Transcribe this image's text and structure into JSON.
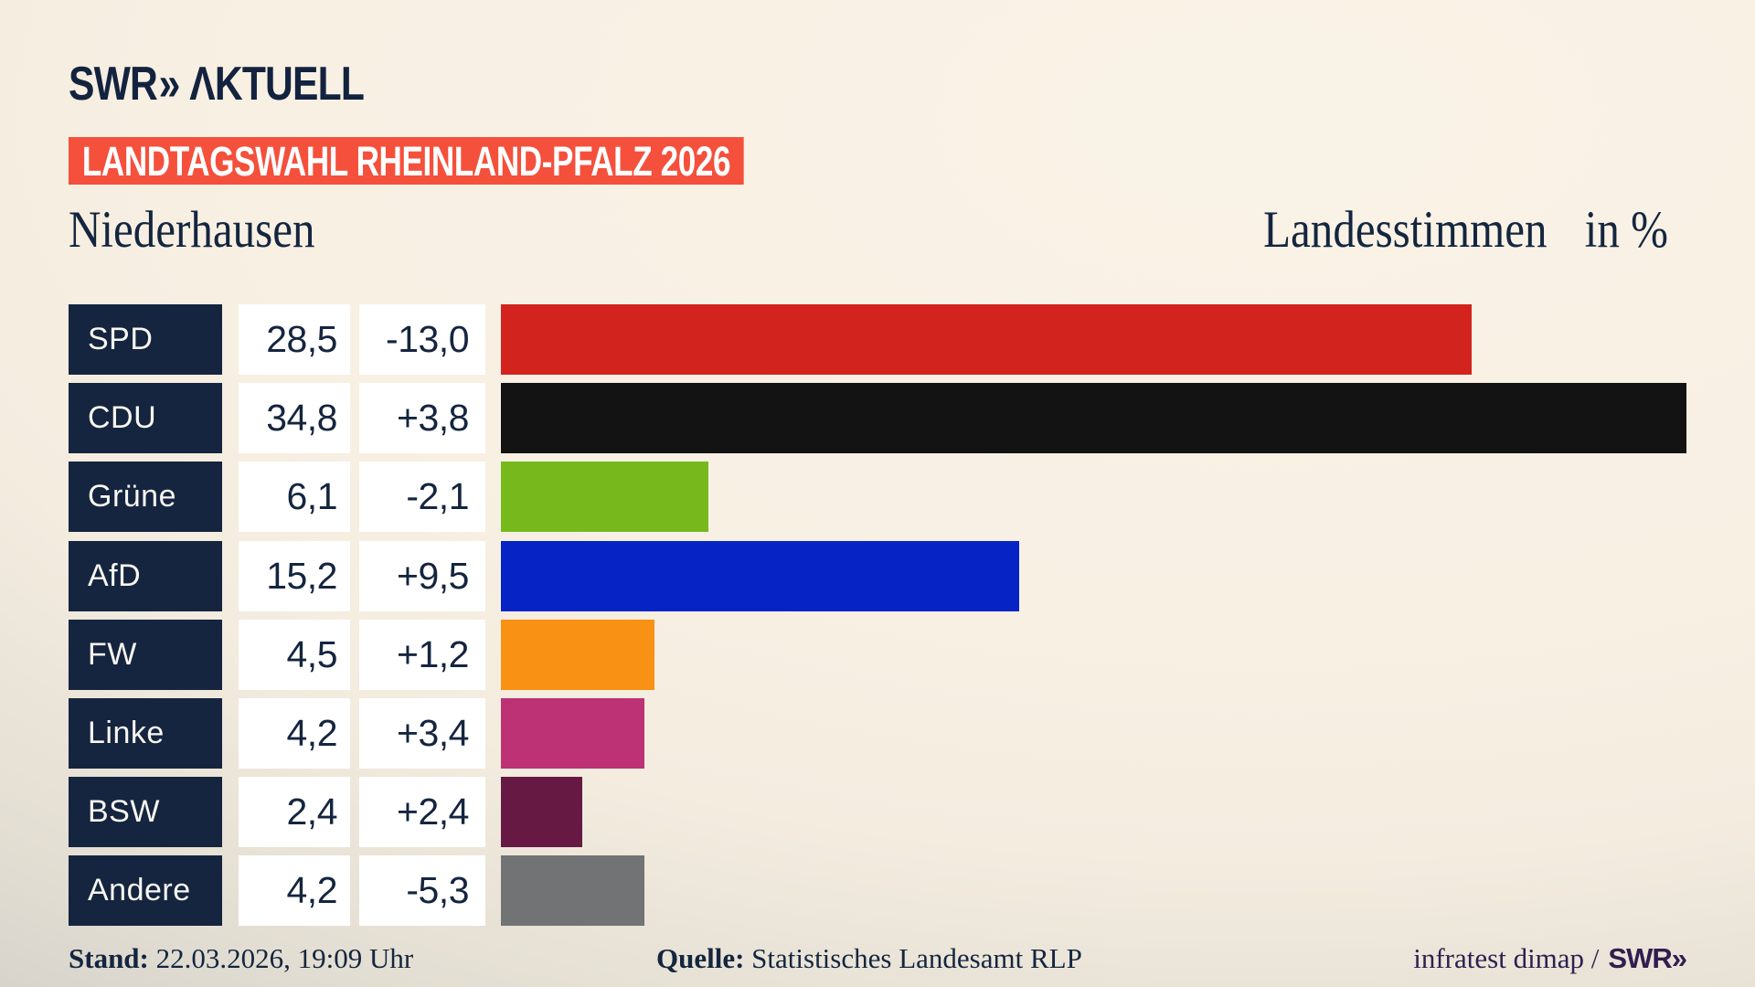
{
  "logo": {
    "brand": "SWR",
    "chevrons": "»",
    "suffix": "ΛKTUELL"
  },
  "header": {
    "banner": "LANDTAGSWAHL RHEINLAND-PFALZ 2026",
    "banner_color": "#f4503c",
    "municipality": "Niederhausen",
    "measure": "Landesstimmen",
    "unit": "in %"
  },
  "chart_data": {
    "type": "bar",
    "orientation": "horizontal",
    "title": "Landtagswahl Rheinland-Pfalz 2026 — Niederhausen, Landesstimmen in %",
    "categories": [
      "SPD",
      "CDU",
      "Grüne",
      "AfD",
      "FW",
      "Linke",
      "BSW",
      "Andere"
    ],
    "values": [
      28.5,
      34.8,
      6.1,
      15.2,
      4.5,
      4.2,
      2.4,
      4.2
    ],
    "value_labels": [
      "28,5",
      "34,8",
      "6,1",
      "15,2",
      "4,5",
      "4,2",
      "2,4",
      "4,2"
    ],
    "changes": [
      -13.0,
      3.8,
      -2.1,
      9.5,
      1.2,
      3.4,
      2.4,
      -5.3
    ],
    "change_labels": [
      "-13,0",
      "+3,8",
      "-2,1",
      "+9,5",
      "+1,2",
      "+3,4",
      "+2,4",
      "-5,3"
    ],
    "bar_colors": [
      "#d2231e",
      "#131313",
      "#77b91d",
      "#0623c6",
      "#f89114",
      "#bd3274",
      "#661a43",
      "#717375"
    ],
    "xlim": [
      0,
      34.8
    ],
    "grid": false,
    "legend": false,
    "label_box_color": "#15253f",
    "value_box_color": "#ffffff"
  },
  "footer": {
    "stand_label": "Stand:",
    "stand_value": "22.03.2026, 19:09 Uhr",
    "quelle_label": "Quelle:",
    "quelle_value": "Statistisches Landesamt RLP",
    "credit": "infratest dimap /",
    "credit_brand": "SWR»"
  }
}
